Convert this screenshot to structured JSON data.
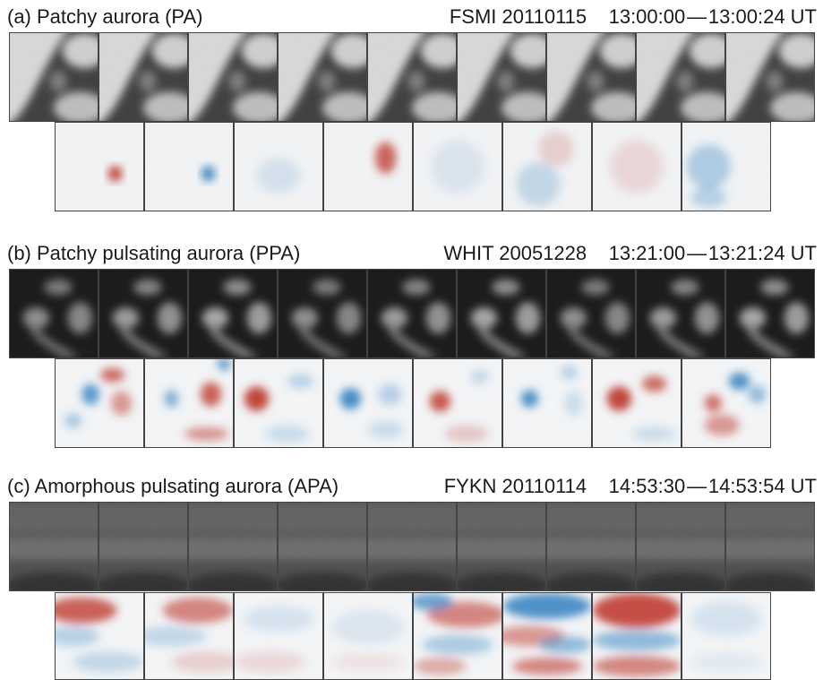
{
  "panels": [
    {
      "title": "(a) Patchy aurora (PA)",
      "station": "FSMI 20110115",
      "time_start": "13:00:00",
      "time_end": "13:00:24 UT",
      "style": "pa"
    },
    {
      "title": "(b) Patchy pulsating aurora (PPA)",
      "station": "WHIT 20051228",
      "time_start": "13:21:00",
      "time_end": "13:21:24 UT",
      "style": "ppa"
    },
    {
      "title": "(c) Amorphous pulsating aurora (APA)",
      "station": "FYKN 20110114",
      "time_start": "14:53:30",
      "time_end": "14:53:54 UT",
      "style": "apa"
    }
  ],
  "colors": {
    "diff_positive": "#c0392b",
    "diff_negative": "#2e7fc0",
    "diff_background": "#f4f6f8"
  }
}
